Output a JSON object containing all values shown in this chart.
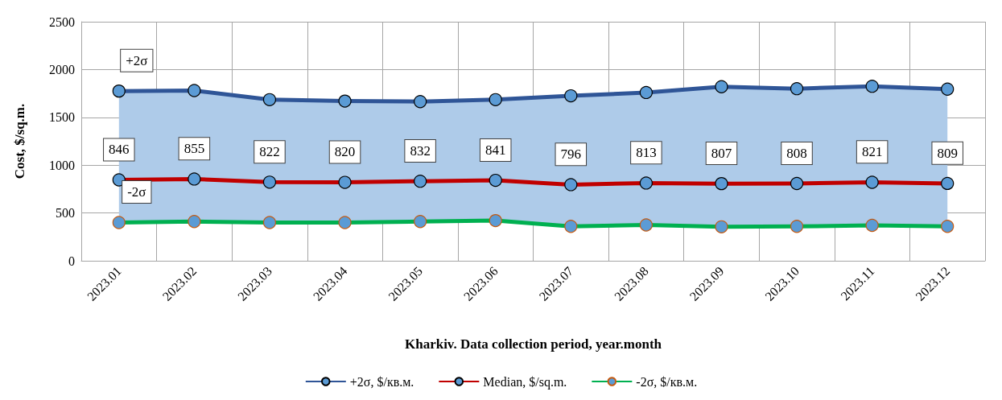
{
  "chart_data": {
    "type": "line",
    "xlabel": "Kharkiv. Data collection period, year.month",
    "ylabel": "Cost, $/sq.m.",
    "categories": [
      "2023.01",
      "2023.02",
      "2023.03",
      "2023.04",
      "2023.05",
      "2023.06",
      "2023.07",
      "2023.08",
      "2023.09",
      "2023.10",
      "2023.11",
      "2023.12"
    ],
    "series": [
      {
        "name": "+2σ, $/кв.м.",
        "color": "#2f5597",
        "values": [
          1775,
          1780,
          1685,
          1670,
          1665,
          1685,
          1725,
          1760,
          1820,
          1800,
          1825,
          1795
        ]
      },
      {
        "name": "Median, $/sq.m.",
        "color": "#c00000",
        "values": [
          846,
          855,
          822,
          820,
          832,
          841,
          796,
          813,
          807,
          808,
          821,
          809
        ],
        "lower": [
          400,
          410,
          400,
          400,
          410,
          420,
          360,
          375,
          355,
          360,
          370,
          360
        ],
        "upper": [
          1775,
          1780,
          1685,
          1670,
          1665,
          1685,
          1725,
          1760,
          1820,
          1800,
          1825,
          1795
        ],
        "data_labels": true
      },
      {
        "name": "-2σ, $/кв.м.",
        "color": "#00b050",
        "values": [
          400,
          410,
          400,
          400,
          410,
          420,
          360,
          375,
          355,
          360,
          370,
          360
        ]
      }
    ],
    "annotations": [
      {
        "text": "+2σ",
        "x": "2023.01",
        "y": 1775
      },
      {
        "text": "-2σ",
        "x": "2023.01",
        "y": 400
      }
    ],
    "ylim": [
      0,
      2500
    ],
    "yticks": [
      0,
      500,
      1000,
      1500,
      2000,
      2500
    ],
    "grid": true,
    "legend": "bottom",
    "marker": "circle",
    "line_style": "solid"
  }
}
